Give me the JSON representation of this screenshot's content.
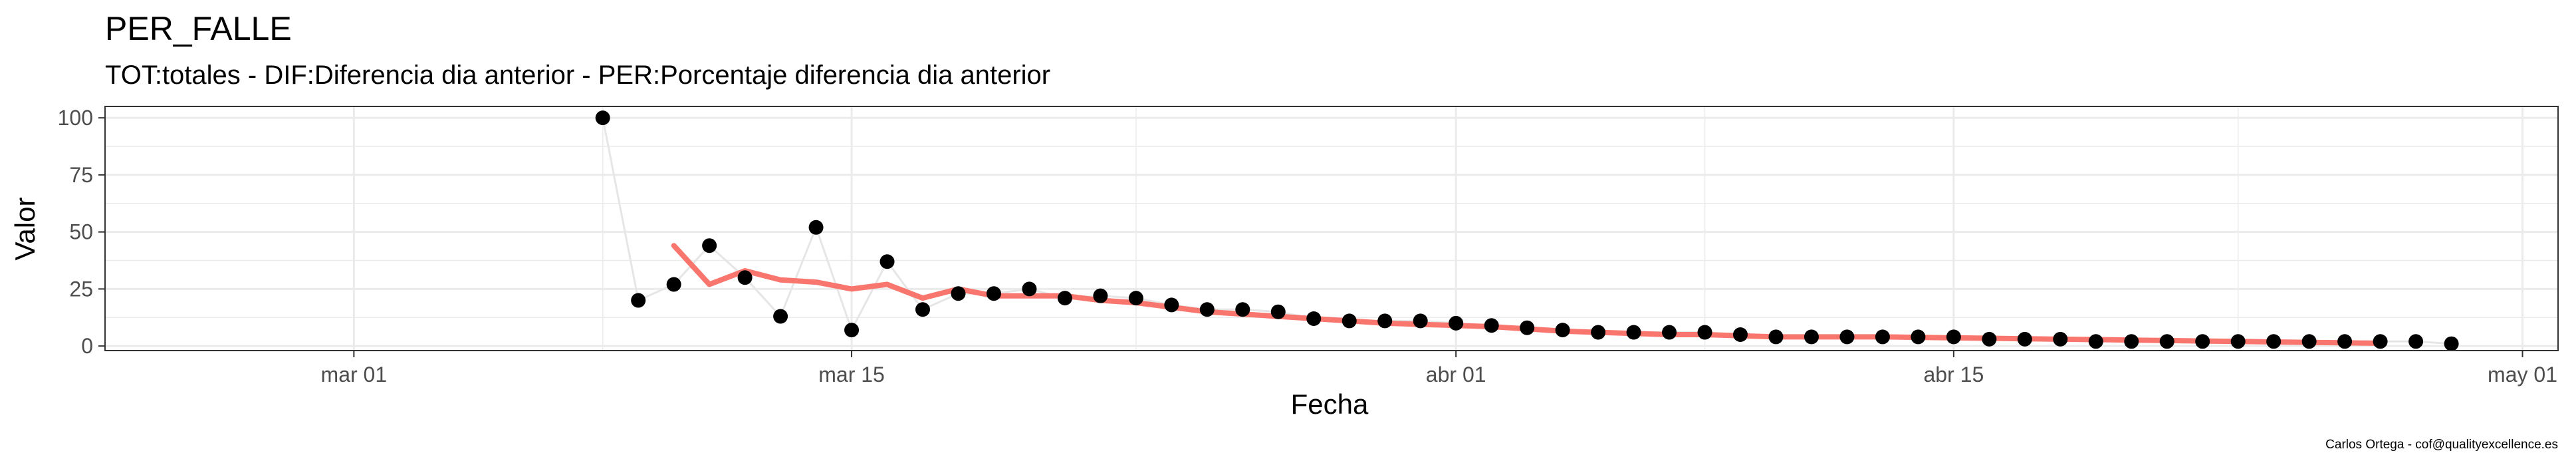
{
  "chart_data": {
    "type": "line",
    "title": "PER_FALLE",
    "subtitle": "TOT:totales - DIF:Diferencia dia anterior - PER:Porcentaje diferencia dia anterior",
    "xlabel": "Fecha",
    "ylabel": "Valor",
    "caption": "Carlos Ortega - cof@qualityexcellence.es",
    "xlim": [
      "2020-02-23",
      "2020-05-02"
    ],
    "ylim": [
      -2,
      105
    ],
    "x_ticks": [
      {
        "date": "2020-03-01",
        "label": "mar 01"
      },
      {
        "date": "2020-03-15",
        "label": "mar 15"
      },
      {
        "date": "2020-04-01",
        "label": "abr 01"
      },
      {
        "date": "2020-04-15",
        "label": "abr 15"
      },
      {
        "date": "2020-05-01",
        "label": "may 01"
      }
    ],
    "y_ticks": [
      0,
      25,
      50,
      75,
      100
    ],
    "grid": true,
    "colors": {
      "points": "#000000",
      "line": "#f8766d",
      "connector": "#e6e6e6",
      "grid": "#ebebeb",
      "panel_border": "#333333"
    },
    "series": [
      {
        "type": "scatter-connected",
        "x": [
          "2020-03-08",
          "2020-03-09",
          "2020-03-10",
          "2020-03-11",
          "2020-03-12",
          "2020-03-13",
          "2020-03-14",
          "2020-03-15",
          "2020-03-16",
          "2020-03-17",
          "2020-03-18",
          "2020-03-19",
          "2020-03-20",
          "2020-03-21",
          "2020-03-22",
          "2020-03-23",
          "2020-03-24",
          "2020-03-25",
          "2020-03-26",
          "2020-03-27",
          "2020-03-28",
          "2020-03-29",
          "2020-03-30",
          "2020-03-31",
          "2020-04-01",
          "2020-04-02",
          "2020-04-03",
          "2020-04-04",
          "2020-04-05",
          "2020-04-06",
          "2020-04-07",
          "2020-04-08",
          "2020-04-09",
          "2020-04-10",
          "2020-04-11",
          "2020-04-12",
          "2020-04-13",
          "2020-04-14",
          "2020-04-15",
          "2020-04-16",
          "2020-04-17",
          "2020-04-18",
          "2020-04-19",
          "2020-04-20",
          "2020-04-21",
          "2020-04-22",
          "2020-04-23",
          "2020-04-24",
          "2020-04-25",
          "2020-04-26",
          "2020-04-27",
          "2020-04-28",
          "2020-04-29"
        ],
        "values": [
          100,
          20,
          27,
          44,
          30,
          13,
          52,
          7,
          37,
          16,
          23,
          23,
          25,
          21,
          22,
          21,
          18,
          16,
          16,
          15,
          12,
          11,
          11,
          11,
          10,
          9,
          8,
          7,
          6,
          6,
          6,
          6,
          5,
          4,
          4,
          4,
          4,
          4,
          4,
          3,
          3,
          3,
          2,
          2,
          2,
          2,
          2,
          2,
          2,
          2,
          2,
          2,
          1
        ]
      },
      {
        "type": "smooth-line",
        "x": [
          "2020-03-10",
          "2020-03-11",
          "2020-03-12",
          "2020-03-13",
          "2020-03-14",
          "2020-03-15",
          "2020-03-16",
          "2020-03-17",
          "2020-03-18",
          "2020-03-19",
          "2020-03-20",
          "2020-03-21",
          "2020-03-22",
          "2020-03-23",
          "2020-03-24",
          "2020-03-25",
          "2020-03-26",
          "2020-03-27",
          "2020-03-28",
          "2020-03-29",
          "2020-03-30",
          "2020-03-31",
          "2020-04-01",
          "2020-04-02",
          "2020-04-03",
          "2020-04-04",
          "2020-04-05",
          "2020-04-06",
          "2020-04-07",
          "2020-04-08",
          "2020-04-09",
          "2020-04-10",
          "2020-04-11",
          "2020-04-12",
          "2020-04-13",
          "2020-04-14",
          "2020-04-15",
          "2020-04-16",
          "2020-04-17",
          "2020-04-18",
          "2020-04-19",
          "2020-04-20",
          "2020-04-21",
          "2020-04-22",
          "2020-04-23",
          "2020-04-24",
          "2020-04-25",
          "2020-04-26",
          "2020-04-27"
        ],
        "values": [
          44,
          27,
          33,
          29,
          28,
          25,
          27,
          21,
          25,
          22,
          22,
          22,
          20,
          19,
          17,
          15,
          14,
          13,
          12,
          11,
          10,
          9.5,
          9,
          8.5,
          7.5,
          6.5,
          6,
          5.5,
          5,
          5,
          4.5,
          4,
          4,
          4,
          4,
          3.8,
          3.6,
          3.4,
          3.2,
          3,
          2.8,
          2.6,
          2.4,
          2.2,
          2,
          1.8,
          1.6,
          1.4,
          1.2
        ]
      }
    ]
  }
}
